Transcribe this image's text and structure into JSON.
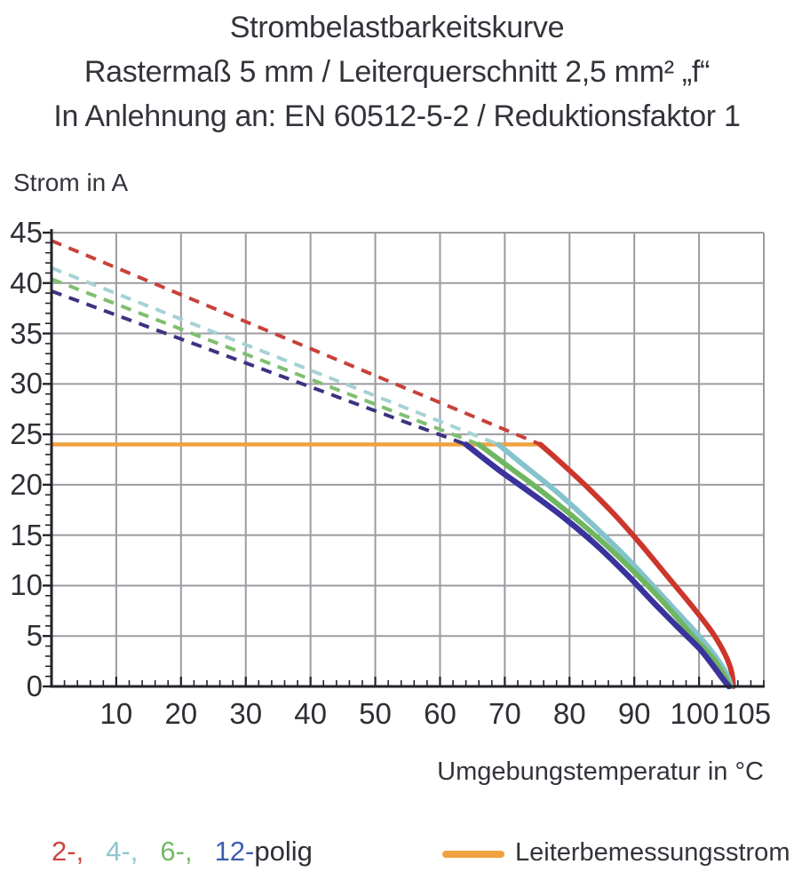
{
  "title": {
    "line1": "Strombelastbarkeitskurve",
    "line2": "Rastermaß 5 mm / Leiterquerschnitt 2,5 mm² „f“",
    "line3": "In Anlehnung an: EN 60512-5-2 / Reduktionsfaktor 1"
  },
  "colors": {
    "grid": "#9b9ba1",
    "axis": "#232329",
    "text": "#33333b",
    "background": "#ffffff",
    "rated_orange": "#f0a23f"
  },
  "chart_data": {
    "type": "line",
    "title": "Strombelastbarkeitskurve",
    "ylabel": "Strom in A",
    "xlabel": "Umgebungstemperatur in °C",
    "xlim": [
      0,
      110
    ],
    "ylim": [
      0,
      45
    ],
    "x_ticks": [
      10,
      20,
      30,
      40,
      50,
      60,
      70,
      80,
      90,
      100,
      105
    ],
    "x_gridlines": [
      10,
      20,
      30,
      40,
      50,
      60,
      70,
      80,
      90,
      100
    ],
    "x_minor_step": 2,
    "y_ticks": [
      0,
      5,
      10,
      15,
      20,
      25,
      30,
      35,
      40,
      45
    ],
    "y_minor_step": 1,
    "grid": true,
    "legend_position": "bottom",
    "series": [
      {
        "name": "2-polig",
        "color": "#cc362c",
        "dash_color": "#c7413a",
        "w": 6,
        "dash": [
          [
            0,
            44.2
          ],
          [
            75.5,
            24
          ]
        ],
        "solid": [
          [
            75.5,
            24
          ],
          [
            79,
            22
          ],
          [
            83,
            19.6
          ],
          [
            87,
            17
          ],
          [
            91,
            14.1
          ],
          [
            95,
            11
          ],
          [
            99,
            7.9
          ],
          [
            102,
            5.4
          ],
          [
            104,
            3.2
          ],
          [
            105,
            1.5
          ],
          [
            105.3,
            0
          ]
        ]
      },
      {
        "name": "4-polig",
        "color": "#84c3cc",
        "dash_color": "#a5d2d5",
        "w": 6,
        "dash": [
          [
            0,
            41.5
          ],
          [
            69,
            24
          ]
        ],
        "solid": [
          [
            69,
            24
          ],
          [
            73,
            21.9
          ],
          [
            78,
            19.3
          ],
          [
            83,
            16.4
          ],
          [
            88,
            13.3
          ],
          [
            92,
            10.6
          ],
          [
            96,
            7.8
          ],
          [
            100,
            5.0
          ],
          [
            102.5,
            3.0
          ],
          [
            104.2,
            1.3
          ],
          [
            105,
            0
          ]
        ]
      },
      {
        "name": "6-polig",
        "color": "#6fb660",
        "dash_color": "#7fbf70",
        "w": 6,
        "dash": [
          [
            0,
            40.4
          ],
          [
            66,
            24
          ]
        ],
        "solid": [
          [
            66,
            24
          ],
          [
            71,
            21.6
          ],
          [
            76,
            19.2
          ],
          [
            81,
            16.6
          ],
          [
            86,
            13.8
          ],
          [
            91,
            10.7
          ],
          [
            95,
            8.0
          ],
          [
            99,
            5.0
          ],
          [
            102,
            2.9
          ],
          [
            103.8,
            1.2
          ],
          [
            104.8,
            0
          ]
        ]
      },
      {
        "name": "12-polig",
        "color": "#3a339c",
        "dash_color": "#3b3380",
        "w": 6.5,
        "dash": [
          [
            0,
            39.2
          ],
          [
            64,
            24
          ]
        ],
        "solid": [
          [
            64,
            24
          ],
          [
            69,
            21.5
          ],
          [
            74,
            19.2
          ],
          [
            79,
            16.8
          ],
          [
            84,
            14.1
          ],
          [
            89,
            11.0
          ],
          [
            93,
            8.3
          ],
          [
            97,
            5.7
          ],
          [
            100,
            3.8
          ],
          [
            102,
            2.2
          ],
          [
            103.5,
            0.9
          ],
          [
            104.6,
            0
          ]
        ]
      }
    ],
    "rated_current": {
      "value": 24,
      "x_start": 0,
      "x_end": 75.5,
      "color": "#f0a23f",
      "label": "Leiterbemessungsstrom"
    }
  },
  "legend": {
    "poles": [
      {
        "label": "2-,",
        "color": "#c9463f"
      },
      {
        "label": "4-,",
        "color": "#8fc6cf"
      },
      {
        "label": "6-,",
        "color": "#74ba66"
      },
      {
        "label": "12-",
        "color": "#3d5fae"
      }
    ],
    "suffix": "polig",
    "rated": {
      "label": "Leiterbemessungsstrom",
      "color": "#f0a23f"
    }
  }
}
